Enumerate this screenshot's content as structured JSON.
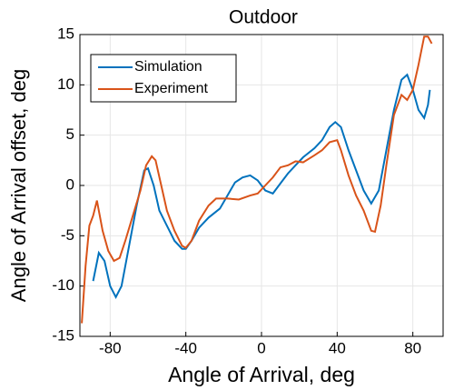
{
  "chart_data": {
    "type": "line",
    "title": "Outdoor",
    "x_label": "Angle of Arrival, deg",
    "y_label": "Angle of Arrival offset, deg",
    "xlim": [
      -96,
      96
    ],
    "ylim": [
      -15,
      15
    ],
    "xticks": [
      -80,
      -40,
      0,
      40,
      80
    ],
    "yticks": [
      -15,
      -10,
      -5,
      0,
      5,
      10,
      15
    ],
    "grid": true,
    "legend": "upper left",
    "series": [
      {
        "name": "Simulation",
        "color": "#0072bd",
        "x": [
          -89,
          -86,
          -83,
          -80,
          -77,
          -74,
          -70,
          -66,
          -62,
          -60,
          -57,
          -54,
          -50,
          -46,
          -42,
          -40,
          -37,
          -33,
          -28,
          -22,
          -18,
          -14,
          -10,
          -6,
          -2,
          2,
          6,
          10,
          14,
          18,
          22,
          28,
          32,
          36,
          39,
          42,
          46,
          50,
          54,
          58,
          62,
          66,
          70,
          74,
          77,
          80,
          83,
          86,
          88,
          89
        ],
        "values": [
          -9.5,
          -6.7,
          -7.5,
          -10,
          -11.1,
          -10,
          -6,
          -2,
          1.5,
          1.7,
          0,
          -2.5,
          -4,
          -5.5,
          -6.3,
          -6.3,
          -5.5,
          -4.2,
          -3.2,
          -2.3,
          -1,
          0.3,
          0.8,
          1,
          0.5,
          -0.5,
          -0.8,
          0.2,
          1.2,
          2,
          2.8,
          3.7,
          4.5,
          5.8,
          6.3,
          5.8,
          3.5,
          1.5,
          -0.5,
          -1.8,
          -0.5,
          3.5,
          7.5,
          10.5,
          11,
          9.5,
          7.5,
          6.7,
          8,
          9.5
        ]
      },
      {
        "name": "Experiment",
        "color": "#d95319",
        "x": [
          -95,
          -93,
          -91,
          -89,
          -87,
          -86,
          -84,
          -81,
          -78,
          -75,
          -72,
          -68,
          -64,
          -61,
          -58,
          -56,
          -53,
          -50,
          -46,
          -42,
          -40,
          -37,
          -33,
          -28,
          -24,
          -18,
          -12,
          -6,
          -2,
          2,
          6,
          10,
          14,
          18,
          22,
          28,
          32,
          36,
          40,
          42,
          46,
          50,
          54,
          58,
          60,
          63,
          66,
          70,
          74,
          77,
          80,
          83,
          86,
          88,
          90
        ],
        "values": [
          -13.7,
          -8,
          -4,
          -3,
          -1.5,
          -2.5,
          -4.5,
          -6.5,
          -7.5,
          -7.2,
          -5.5,
          -3,
          -0.5,
          2,
          2.9,
          2.5,
          0,
          -2.5,
          -4.5,
          -6,
          -6.2,
          -5.5,
          -3.5,
          -2,
          -1.3,
          -1.3,
          -1.4,
          -1,
          -0.8,
          0,
          0.8,
          1.8,
          2,
          2.4,
          2.3,
          3,
          3.5,
          4.3,
          4.5,
          3.5,
          1,
          -1,
          -2.5,
          -4.5,
          -4.6,
          -2,
          2,
          7,
          9,
          8.5,
          9.5,
          12,
          14.8,
          14.8,
          14.1
        ]
      }
    ]
  }
}
